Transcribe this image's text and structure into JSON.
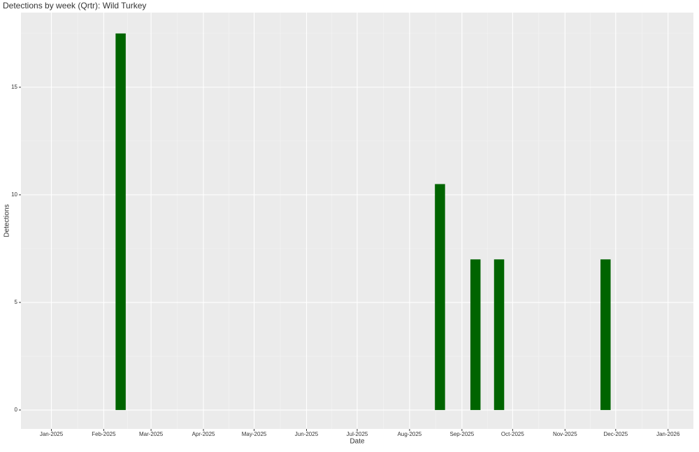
{
  "chart_data": {
    "type": "bar",
    "title": "Detections by week (Qrtr): Wild Turkey",
    "x_label": "Date",
    "y_label": "Detections",
    "x": [
      "2025-02-11",
      "2025-08-19",
      "2025-09-09",
      "2025-09-23",
      "2025-11-25"
    ],
    "values": [
      17.5,
      10.5,
      7,
      7,
      7
    ],
    "color": "#006400",
    "xlim": [
      "2024-12-14",
      "2026-01-16"
    ],
    "xticks": [
      {
        "value": "2025-01-01",
        "label": "Jan-2025"
      },
      {
        "value": "2025-02-01",
        "label": "Feb-2025"
      },
      {
        "value": "2025-03-01",
        "label": "Mar-2025"
      },
      {
        "value": "2025-04-01",
        "label": "Apr-2025"
      },
      {
        "value": "2025-05-01",
        "label": "May-2025"
      },
      {
        "value": "2025-06-01",
        "label": "Jun-2025"
      },
      {
        "value": "2025-07-01",
        "label": "Jul-2025"
      },
      {
        "value": "2025-08-01",
        "label": "Aug-2025"
      },
      {
        "value": "2025-09-01",
        "label": "Sep-2025"
      },
      {
        "value": "2025-10-01",
        "label": "Oct-2025"
      },
      {
        "value": "2025-11-01",
        "label": "Nov-2025"
      },
      {
        "value": "2025-12-01",
        "label": "Dec-2025"
      },
      {
        "value": "2026-01-01",
        "label": "Jan-2026"
      }
    ],
    "ylim": [
      -0.88,
      18.47
    ],
    "yticks": [
      0,
      5,
      10,
      15
    ],
    "grid": true
  }
}
